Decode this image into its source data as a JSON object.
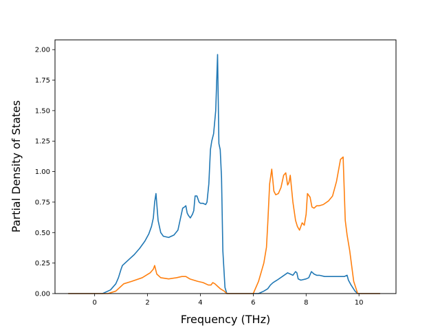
{
  "chart_data": {
    "type": "line",
    "title": "",
    "xlabel": "Frequency (THz)",
    "ylabel": "Partial Density of States",
    "xlim": [
      -1.5,
      11.4
    ],
    "ylim": [
      0,
      2.08
    ],
    "xticks": [
      0,
      2,
      4,
      6,
      8,
      10
    ],
    "xtick_labels": [
      "0",
      "2",
      "4",
      "6",
      "8",
      "10"
    ],
    "yticks": [
      0,
      0.25,
      0.5,
      0.75,
      1.0,
      1.25,
      1.5,
      1.75,
      2.0
    ],
    "ytick_labels": [
      "0.00",
      "0.25",
      "0.50",
      "0.75",
      "1.00",
      "1.25",
      "1.50",
      "1.75",
      "2.00"
    ],
    "grid": false,
    "legend": "none",
    "series": [
      {
        "color": "#1f77b4",
        "x": [
          -1.0,
          0.0,
          0.3,
          0.6,
          0.8,
          0.9,
          1.0,
          1.05,
          1.1,
          1.3,
          1.5,
          1.7,
          1.9,
          2.05,
          2.15,
          2.22,
          2.27,
          2.32,
          2.4,
          2.5,
          2.6,
          2.8,
          3.0,
          3.15,
          3.25,
          3.33,
          3.4,
          3.45,
          3.5,
          3.55,
          3.62,
          3.7,
          3.75,
          3.8,
          3.87,
          3.95,
          4.0,
          4.1,
          4.2,
          4.25,
          4.32,
          4.38,
          4.43,
          4.5,
          4.58,
          4.65,
          4.7,
          4.75,
          4.8,
          4.85,
          4.93,
          5.0,
          5.05,
          5.5,
          6.0,
          6.2,
          6.4,
          6.55,
          6.65,
          6.75,
          6.9,
          7.1,
          7.3,
          7.4,
          7.5,
          7.6,
          7.65,
          7.7,
          7.8,
          8.0,
          8.1,
          8.2,
          8.3,
          8.4,
          8.5,
          8.7,
          9.0,
          9.3,
          9.45,
          9.55,
          9.6,
          9.7,
          9.85,
          9.95,
          10.8
        ],
        "y": [
          0.0,
          0.0,
          0.0,
          0.03,
          0.08,
          0.13,
          0.2,
          0.23,
          0.24,
          0.28,
          0.32,
          0.37,
          0.43,
          0.49,
          0.55,
          0.62,
          0.75,
          0.82,
          0.6,
          0.5,
          0.47,
          0.46,
          0.48,
          0.52,
          0.62,
          0.7,
          0.71,
          0.72,
          0.66,
          0.64,
          0.62,
          0.65,
          0.68,
          0.8,
          0.8,
          0.75,
          0.74,
          0.74,
          0.73,
          0.75,
          0.9,
          1.18,
          1.25,
          1.31,
          1.5,
          1.96,
          1.23,
          1.18,
          0.95,
          0.35,
          0.05,
          0.0,
          0.0,
          0.0,
          0.0,
          0.0,
          0.02,
          0.04,
          0.07,
          0.09,
          0.11,
          0.14,
          0.17,
          0.16,
          0.15,
          0.18,
          0.17,
          0.12,
          0.11,
          0.12,
          0.13,
          0.18,
          0.16,
          0.15,
          0.15,
          0.14,
          0.14,
          0.14,
          0.14,
          0.15,
          0.11,
          0.07,
          0.02,
          0.0,
          0.0
        ]
      },
      {
        "color": "#ff7f0e",
        "x": [
          -1.0,
          0.0,
          0.5,
          0.8,
          1.0,
          1.1,
          1.4,
          1.8,
          2.1,
          2.22,
          2.27,
          2.35,
          2.5,
          2.8,
          3.1,
          3.3,
          3.45,
          3.6,
          3.9,
          4.1,
          4.3,
          4.4,
          4.47,
          4.55,
          4.65,
          4.75,
          4.9,
          5.0,
          5.5,
          6.0,
          6.2,
          6.4,
          6.5,
          6.55,
          6.62,
          6.7,
          6.78,
          6.85,
          6.95,
          7.05,
          7.15,
          7.23,
          7.3,
          7.35,
          7.4,
          7.5,
          7.6,
          7.67,
          7.75,
          7.85,
          7.93,
          8.0,
          8.05,
          8.15,
          8.22,
          8.3,
          8.4,
          8.5,
          8.65,
          8.85,
          9.0,
          9.15,
          9.3,
          9.4,
          9.48,
          9.55,
          9.65,
          9.8,
          9.95,
          10.8
        ],
        "y": [
          0.0,
          0.0,
          0.0,
          0.02,
          0.06,
          0.08,
          0.1,
          0.13,
          0.17,
          0.2,
          0.23,
          0.16,
          0.13,
          0.12,
          0.13,
          0.14,
          0.14,
          0.12,
          0.1,
          0.09,
          0.07,
          0.07,
          0.09,
          0.08,
          0.06,
          0.04,
          0.02,
          0.0,
          0.0,
          0.0,
          0.1,
          0.25,
          0.38,
          0.58,
          0.9,
          1.02,
          0.84,
          0.81,
          0.82,
          0.87,
          0.97,
          0.99,
          0.89,
          0.91,
          0.97,
          0.75,
          0.6,
          0.55,
          0.52,
          0.58,
          0.56,
          0.65,
          0.82,
          0.79,
          0.71,
          0.7,
          0.72,
          0.72,
          0.73,
          0.76,
          0.8,
          0.92,
          1.1,
          1.12,
          0.6,
          0.48,
          0.35,
          0.1,
          0.0,
          0.0
        ]
      }
    ]
  }
}
